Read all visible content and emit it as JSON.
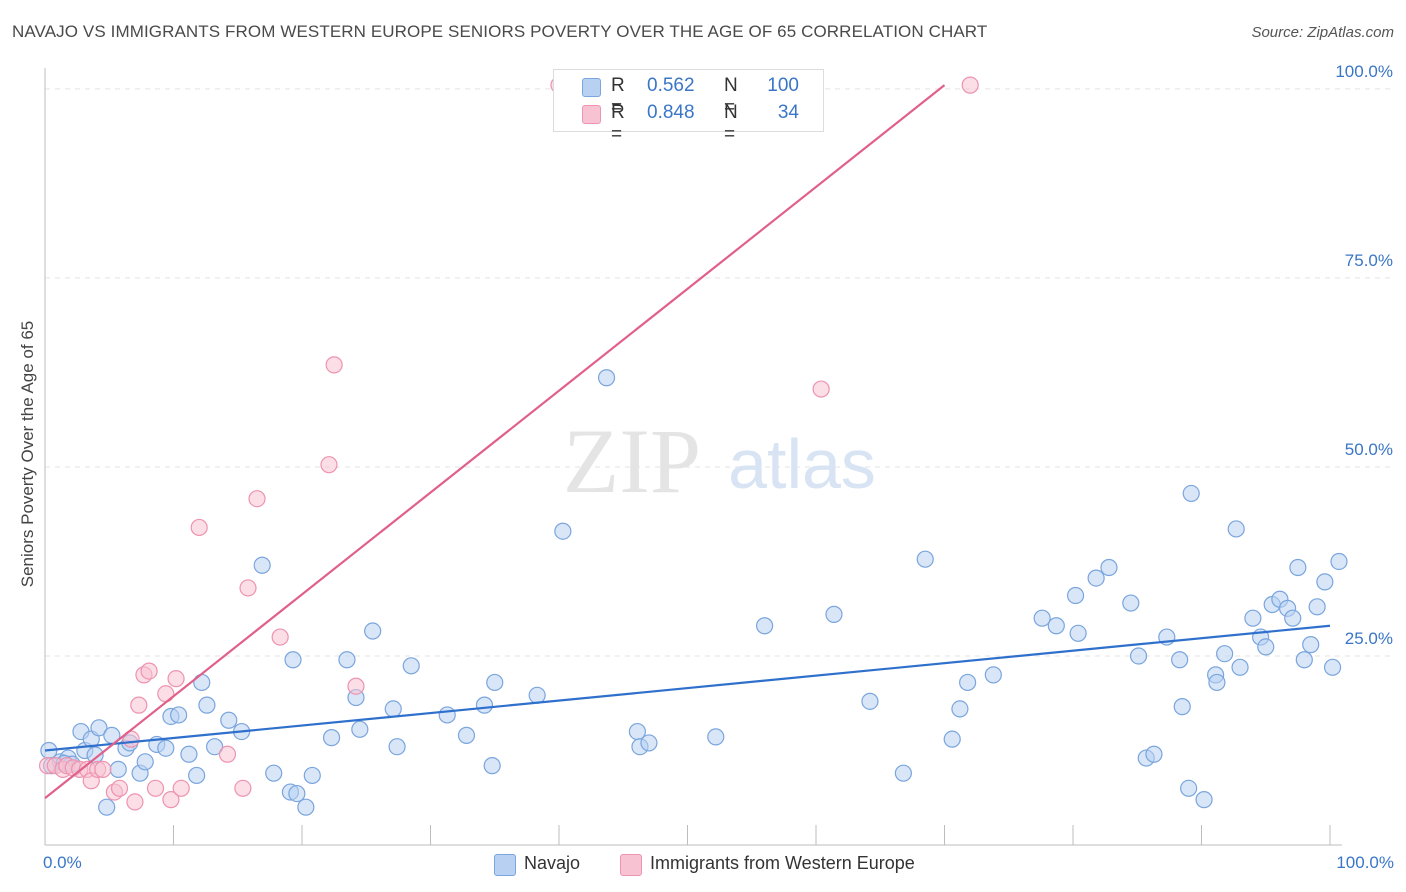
{
  "title": "NAVAJO VS IMMIGRANTS FROM WESTERN EUROPE SENIORS POVERTY OVER THE AGE OF 65 CORRELATION CHART",
  "source": "Source: ZipAtlas.com",
  "colors": {
    "blue_fill": "#b8d1f2",
    "blue_stroke": "#7aa5dd",
    "blue_line": "#2f70cc",
    "pink_fill": "#f7c2d2",
    "pink_stroke": "#ee93b0",
    "pink_line": "#e0608a",
    "grid": "#e3e3e3",
    "tick_text": "#3a76c6",
    "watermark": "#e6e6e6"
  },
  "legend": {
    "rows": [
      {
        "r_label": "R =",
        "r_value": "0.562",
        "n_label": "N =",
        "n_value": "100",
        "color": "#b8d1f2",
        "stroke": "#7aa5dd"
      },
      {
        "r_label": "R =",
        "r_value": "0.848",
        "n_label": "N =",
        "n_value": "34",
        "color": "#f7c2d2",
        "stroke": "#ee93b0"
      }
    ]
  },
  "bottom_legend": {
    "series1": "Navajo",
    "series2": "Immigrants from Western Europe"
  },
  "watermark": {
    "zip": "ZIP",
    "atlas": "atlas"
  },
  "chart_data": {
    "type": "scatter",
    "title": "NAVAJO VS IMMIGRANTS FROM WESTERN EUROPE SENIORS POVERTY OVER THE AGE OF 65 CORRELATION CHART",
    "xlabel": "",
    "ylabel": "Seniors Poverty Over the Age of 65",
    "xlim": [
      0,
      100
    ],
    "ylim": [
      0,
      102.5
    ],
    "x_tick_labels": [
      "0.0%",
      "100.0%"
    ],
    "y_ticks": [
      25,
      50,
      75,
      100
    ],
    "y_tick_labels": [
      "25.0%",
      "50.0%",
      "75.0%",
      "100.0%"
    ],
    "grid": true,
    "series": [
      {
        "name": "Navajo",
        "trendline": {
          "x": [
            0,
            100
          ],
          "y": [
            12.5,
            29.0
          ]
        },
        "points": [
          [
            0.3,
            12.5
          ],
          [
            0.5,
            10.5
          ],
          [
            1.2,
            11.0
          ],
          [
            1.8,
            11.5
          ],
          [
            2.1,
            10.7
          ],
          [
            2.8,
            15.0
          ],
          [
            3.1,
            12.5
          ],
          [
            3.6,
            14.0
          ],
          [
            4.2,
            15.5
          ],
          [
            4.8,
            5.0
          ],
          [
            5.2,
            14.5
          ],
          [
            5.7,
            10.0
          ],
          [
            6.3,
            12.8
          ],
          [
            6.6,
            13.5
          ],
          [
            7.4,
            9.5
          ],
          [
            7.8,
            11.0
          ],
          [
            8.7,
            13.3
          ],
          [
            9.4,
            12.8
          ],
          [
            9.8,
            17.0
          ],
          [
            10.4,
            17.2
          ],
          [
            11.2,
            12.0
          ],
          [
            11.8,
            9.2
          ],
          [
            12.2,
            21.5
          ],
          [
            12.6,
            18.5
          ],
          [
            13.2,
            13.0
          ],
          [
            14.3,
            16.5
          ],
          [
            15.3,
            15.0
          ],
          [
            16.9,
            37.0
          ],
          [
            17.8,
            9.5
          ],
          [
            19.1,
            7.0
          ],
          [
            19.3,
            24.5
          ],
          [
            19.6,
            6.8
          ],
          [
            20.3,
            5.0
          ],
          [
            20.8,
            9.2
          ],
          [
            22.3,
            14.2
          ],
          [
            23.5,
            24.5
          ],
          [
            24.2,
            19.5
          ],
          [
            24.5,
            15.3
          ],
          [
            25.5,
            28.3
          ],
          [
            27.1,
            18.0
          ],
          [
            27.4,
            13.0
          ],
          [
            28.5,
            23.7
          ],
          [
            31.3,
            17.2
          ],
          [
            32.8,
            14.5
          ],
          [
            34.2,
            18.5
          ],
          [
            34.8,
            10.5
          ],
          [
            35.0,
            21.5
          ],
          [
            38.3,
            19.8
          ],
          [
            40.3,
            41.5
          ],
          [
            43.7,
            61.8
          ],
          [
            46.1,
            15.0
          ],
          [
            46.3,
            13.0
          ],
          [
            47.0,
            13.5
          ],
          [
            52.2,
            14.3
          ],
          [
            56.0,
            29.0
          ],
          [
            61.4,
            30.5
          ],
          [
            64.2,
            19.0
          ],
          [
            66.8,
            9.5
          ],
          [
            68.5,
            37.8
          ],
          [
            70.6,
            14.0
          ],
          [
            71.2,
            18.0
          ],
          [
            71.8,
            21.5
          ],
          [
            73.8,
            22.5
          ],
          [
            77.6,
            30.0
          ],
          [
            78.7,
            29.0
          ],
          [
            80.2,
            33.0
          ],
          [
            80.4,
            28.0
          ],
          [
            81.8,
            35.3
          ],
          [
            82.8,
            36.7
          ],
          [
            84.5,
            32.0
          ],
          [
            85.1,
            25.0
          ],
          [
            85.7,
            11.5
          ],
          [
            86.3,
            12.0
          ],
          [
            87.3,
            27.5
          ],
          [
            88.3,
            24.5
          ],
          [
            88.5,
            18.3
          ],
          [
            89.0,
            7.5
          ],
          [
            89.2,
            46.5
          ],
          [
            90.2,
            6.0
          ],
          [
            91.1,
            22.5
          ],
          [
            91.2,
            21.5
          ],
          [
            91.8,
            25.3
          ],
          [
            92.7,
            41.8
          ],
          [
            93.0,
            23.5
          ],
          [
            94.0,
            30.0
          ],
          [
            94.6,
            27.5
          ],
          [
            95.0,
            26.2
          ],
          [
            95.5,
            31.8
          ],
          [
            96.1,
            32.5
          ],
          [
            96.7,
            31.3
          ],
          [
            97.1,
            30.0
          ],
          [
            97.5,
            36.7
          ],
          [
            98.0,
            24.5
          ],
          [
            98.5,
            26.5
          ],
          [
            99.0,
            31.5
          ],
          [
            99.6,
            34.8
          ],
          [
            100.2,
            23.5
          ],
          [
            100.7,
            37.5
          ],
          [
            1.5,
            10.8
          ],
          [
            3.9,
            11.9
          ]
        ]
      },
      {
        "name": "Immigrants from Western Europe",
        "trendline": {
          "x": [
            0,
            70
          ],
          "y": [
            6.2,
            100.5
          ]
        },
        "points": [
          [
            0.2,
            10.5
          ],
          [
            0.8,
            10.5
          ],
          [
            1.4,
            10.0
          ],
          [
            1.7,
            10.5
          ],
          [
            2.2,
            10.2
          ],
          [
            2.7,
            10.0
          ],
          [
            3.3,
            10.0
          ],
          [
            3.6,
            8.5
          ],
          [
            4.1,
            10.0
          ],
          [
            4.5,
            10.0
          ],
          [
            5.4,
            7.0
          ],
          [
            5.8,
            7.5
          ],
          [
            6.7,
            14.0
          ],
          [
            7.0,
            5.7
          ],
          [
            7.3,
            18.5
          ],
          [
            7.7,
            22.5
          ],
          [
            8.1,
            23.0
          ],
          [
            8.6,
            7.5
          ],
          [
            9.4,
            20.0
          ],
          [
            9.8,
            6.0
          ],
          [
            10.2,
            22.0
          ],
          [
            10.6,
            7.5
          ],
          [
            12.0,
            42.0
          ],
          [
            14.2,
            12.0
          ],
          [
            15.4,
            7.5
          ],
          [
            15.8,
            34.0
          ],
          [
            16.5,
            45.8
          ],
          [
            18.3,
            27.5
          ],
          [
            22.1,
            50.3
          ],
          [
            22.5,
            63.5
          ],
          [
            24.2,
            21.0
          ],
          [
            40.0,
            100.5
          ],
          [
            60.4,
            60.3
          ],
          [
            72.0,
            100.5
          ]
        ]
      }
    ]
  }
}
